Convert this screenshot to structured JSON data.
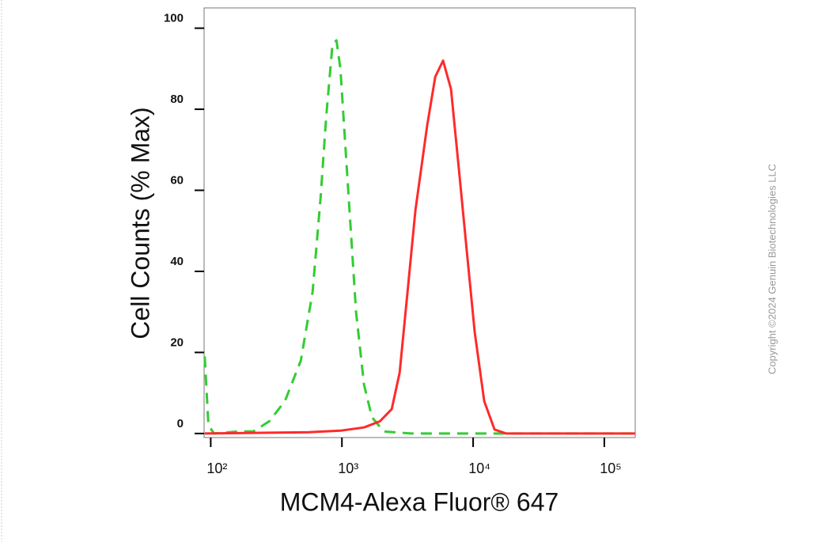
{
  "chart_data": {
    "type": "line",
    "xlabel": "MCM4-Alexa Fluor® 647",
    "ylabel": "Cell Counts (% Max)",
    "copyright": "Copyright ©2024 Genuin Biotechnologies LLC",
    "xscale": "log",
    "xlim": [
      89,
      172000
    ],
    "ylim": [
      -1,
      105
    ],
    "xticks": [
      {
        "value": 100,
        "label": "10²"
      },
      {
        "value": 1000,
        "label": "10³"
      },
      {
        "value": 10000,
        "label": "10⁴"
      },
      {
        "value": 100000,
        "label": "10⁵"
      }
    ],
    "yticks": [
      0,
      20,
      40,
      60,
      80,
      100
    ],
    "series": [
      {
        "color": "#33cc33",
        "style": "dashed",
        "x": [
          90,
          96,
          106,
          160,
          211,
          279,
          368,
          486,
          598,
          687,
          758,
          847,
          908,
          973,
          1117,
          1282,
          1474,
          1694,
          2085,
          3388,
          41100,
          172000
        ],
        "values": [
          19,
          2,
          0,
          0.5,
          0.5,
          3,
          8,
          18,
          35,
          58,
          78,
          96,
          97,
          90,
          60,
          30,
          12,
          4,
          0.5,
          0,
          0,
          0
        ]
      },
      {
        "color": "#ff2a2a",
        "style": "solid",
        "x": [
          90,
          558,
          973,
          1474,
          1945,
          2397,
          2754,
          3162,
          3631,
          4467,
          5140,
          5902,
          6776,
          7797,
          8954,
          10280,
          12140,
          14540,
          17900,
          172000
        ],
        "values": [
          0,
          0.3,
          0.7,
          1.5,
          3,
          6,
          15,
          35,
          55,
          76,
          88,
          92,
          85,
          65,
          45,
          25,
          8,
          1,
          0,
          0
        ]
      }
    ]
  }
}
